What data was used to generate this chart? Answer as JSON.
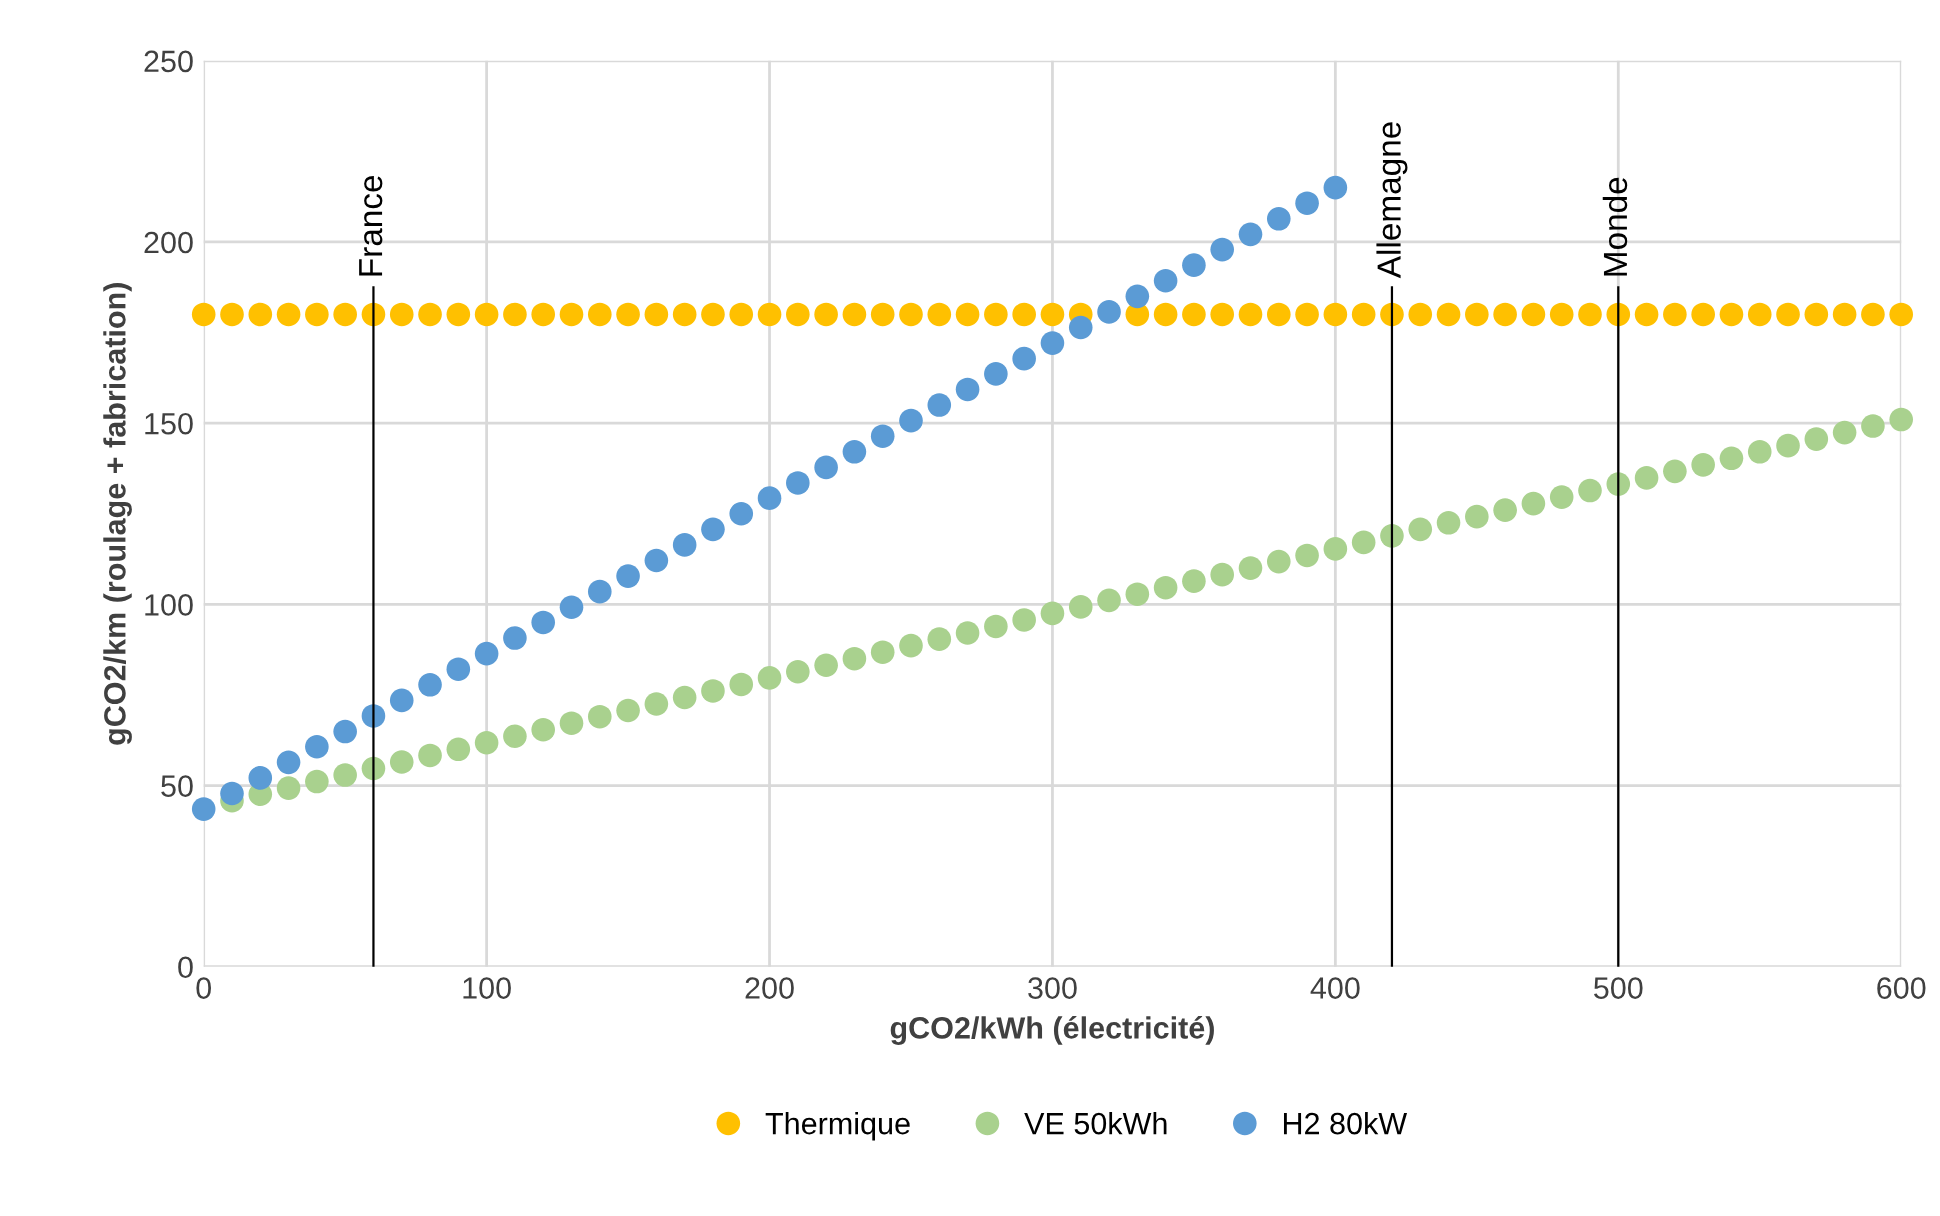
{
  "chart_data": {
    "type": "scatter",
    "xlabel": "gCO2/kWh (électricité)",
    "ylabel": "gCO2/km (roulage + fabrication)",
    "x": [
      0,
      10,
      20,
      30,
      40,
      50,
      60,
      70,
      80,
      90,
      100,
      110,
      120,
      130,
      140,
      150,
      160,
      170,
      180,
      190,
      200,
      210,
      220,
      230,
      240,
      250,
      260,
      270,
      280,
      290,
      300,
      310,
      320,
      330,
      340,
      350,
      360,
      370,
      380,
      390,
      400,
      410,
      420,
      430,
      440,
      450,
      460,
      470,
      480,
      490,
      500,
      510,
      520,
      530,
      540,
      550,
      560,
      570,
      580,
      590,
      600
    ],
    "series": [
      {
        "name": "Thermique",
        "color": "#ffc000",
        "values": [
          180,
          180,
          180,
          180,
          180,
          180,
          180,
          180,
          180,
          180,
          180,
          180,
          180,
          180,
          180,
          180,
          180,
          180,
          180,
          180,
          180,
          180,
          180,
          180,
          180,
          180,
          180,
          180,
          180,
          180,
          180,
          180,
          null,
          180,
          180,
          180,
          180,
          180,
          180,
          180,
          180,
          180,
          180,
          180,
          180,
          180,
          180,
          180,
          180,
          180,
          180,
          180,
          180,
          180,
          180,
          180,
          180,
          180,
          180,
          180,
          180
        ]
      },
      {
        "name": "VE 50kWh",
        "color": "#a9d18e",
        "values": [
          null,
          45.8,
          47.6,
          49.3,
          51.1,
          52.9,
          54.7,
          56.5,
          58.3,
          60.0,
          61.8,
          63.6,
          65.4,
          67.2,
          69.0,
          70.7,
          72.5,
          74.3,
          76.1,
          77.9,
          79.7,
          81.4,
          83.2,
          85.0,
          86.8,
          88.6,
          90.4,
          92.1,
          93.9,
          95.7,
          97.5,
          99.3,
          101.1,
          102.8,
          104.6,
          106.4,
          108.2,
          110.0,
          111.8,
          113.5,
          115.3,
          117.1,
          118.9,
          120.7,
          122.5,
          124.2,
          126.0,
          127.8,
          129.6,
          131.4,
          133.2,
          134.9,
          136.7,
          138.5,
          140.3,
          142.1,
          143.8,
          145.6,
          147.4,
          149.2,
          151.0
        ]
      },
      {
        "name": "H2 80kW",
        "color": "#5b9bd5",
        "values": [
          43.5,
          47.8,
          52.1,
          56.4,
          60.7,
          64.9,
          69.2,
          73.5,
          77.8,
          82.1,
          86.4,
          90.7,
          95.0,
          99.2,
          103.5,
          107.8,
          112.1,
          116.4,
          120.7,
          125.0,
          129.3,
          133.5,
          137.8,
          142.1,
          146.4,
          150.7,
          155.0,
          159.3,
          163.6,
          167.8,
          172.1,
          176.4,
          180.7,
          185.0,
          189.3,
          193.6,
          197.9,
          202.1,
          206.4,
          210.7,
          215.0,
          null,
          null,
          null,
          null,
          null,
          null,
          null,
          null,
          null,
          null,
          null,
          null,
          null,
          null,
          null,
          null,
          null,
          null,
          null,
          null
        ]
      }
    ],
    "ref_lines": [
      {
        "axis": "x",
        "value": 60,
        "label": "France",
        "color": "#000000"
      },
      {
        "axis": "x",
        "value": 420,
        "label": "Allemagne",
        "color": "#000000"
      },
      {
        "axis": "x",
        "value": 500,
        "label": "Monde",
        "color": "#000000"
      }
    ],
    "xlim": [
      0,
      600
    ],
    "xticks": [
      0,
      100,
      200,
      300,
      400,
      500,
      600
    ],
    "ylim": [
      0,
      250
    ],
    "yticks": [
      0,
      50,
      100,
      150,
      200,
      250
    ],
    "grid": true,
    "legend": "bottom",
    "marker": "circle"
  }
}
